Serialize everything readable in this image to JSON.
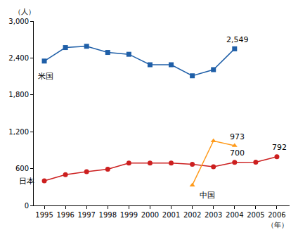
{
  "chart_data": {
    "type": "line",
    "x_label": "（年）",
    "y_label": "（人）",
    "x": [
      1995,
      1996,
      1997,
      1998,
      1999,
      2000,
      2001,
      2002,
      2003,
      2004,
      2005,
      2006
    ],
    "xlim": [
      1994.5,
      2006.6
    ],
    "xticks": [
      1995,
      1996,
      1997,
      1998,
      1999,
      2000,
      2001,
      2002,
      2003,
      2004,
      2005,
      2006
    ],
    "ylim": [
      0,
      3000
    ],
    "yticks": [
      0,
      600,
      {
        "value": 1200,
        "label": "1,200"
      },
      {
        "value": 1800,
        "label": "1,800"
      },
      {
        "value": 2400,
        "label": "2,400"
      },
      {
        "value": 3000,
        "label": "3,000"
      }
    ],
    "grid": false,
    "series": [
      {
        "name": "米国",
        "color": "#1f5fa8",
        "marker": "square",
        "values": [
          2350,
          2570,
          2590,
          2490,
          2460,
          2290,
          2290,
          2110,
          2210,
          2549,
          null,
          null
        ],
        "value_labels": [
          null,
          null,
          null,
          null,
          null,
          null,
          null,
          null,
          null,
          "2,549",
          null,
          null
        ]
      },
      {
        "name": "日本",
        "color": "#cc1f1f",
        "marker": "circle",
        "values": [
          400,
          500,
          550,
          590,
          690,
          690,
          690,
          670,
          630,
          700,
          705,
          792
        ],
        "value_labels": [
          null,
          null,
          null,
          null,
          null,
          null,
          null,
          null,
          null,
          "700",
          null,
          "792"
        ]
      },
      {
        "name": "中国",
        "color": "#ff9a1a",
        "marker": "triangle-up",
        "values": [
          null,
          null,
          null,
          null,
          null,
          null,
          null,
          330,
          1050,
          973,
          null,
          null
        ],
        "value_labels": [
          null,
          null,
          null,
          null,
          null,
          null,
          null,
          null,
          null,
          "973",
          null,
          null
        ]
      }
    ]
  }
}
